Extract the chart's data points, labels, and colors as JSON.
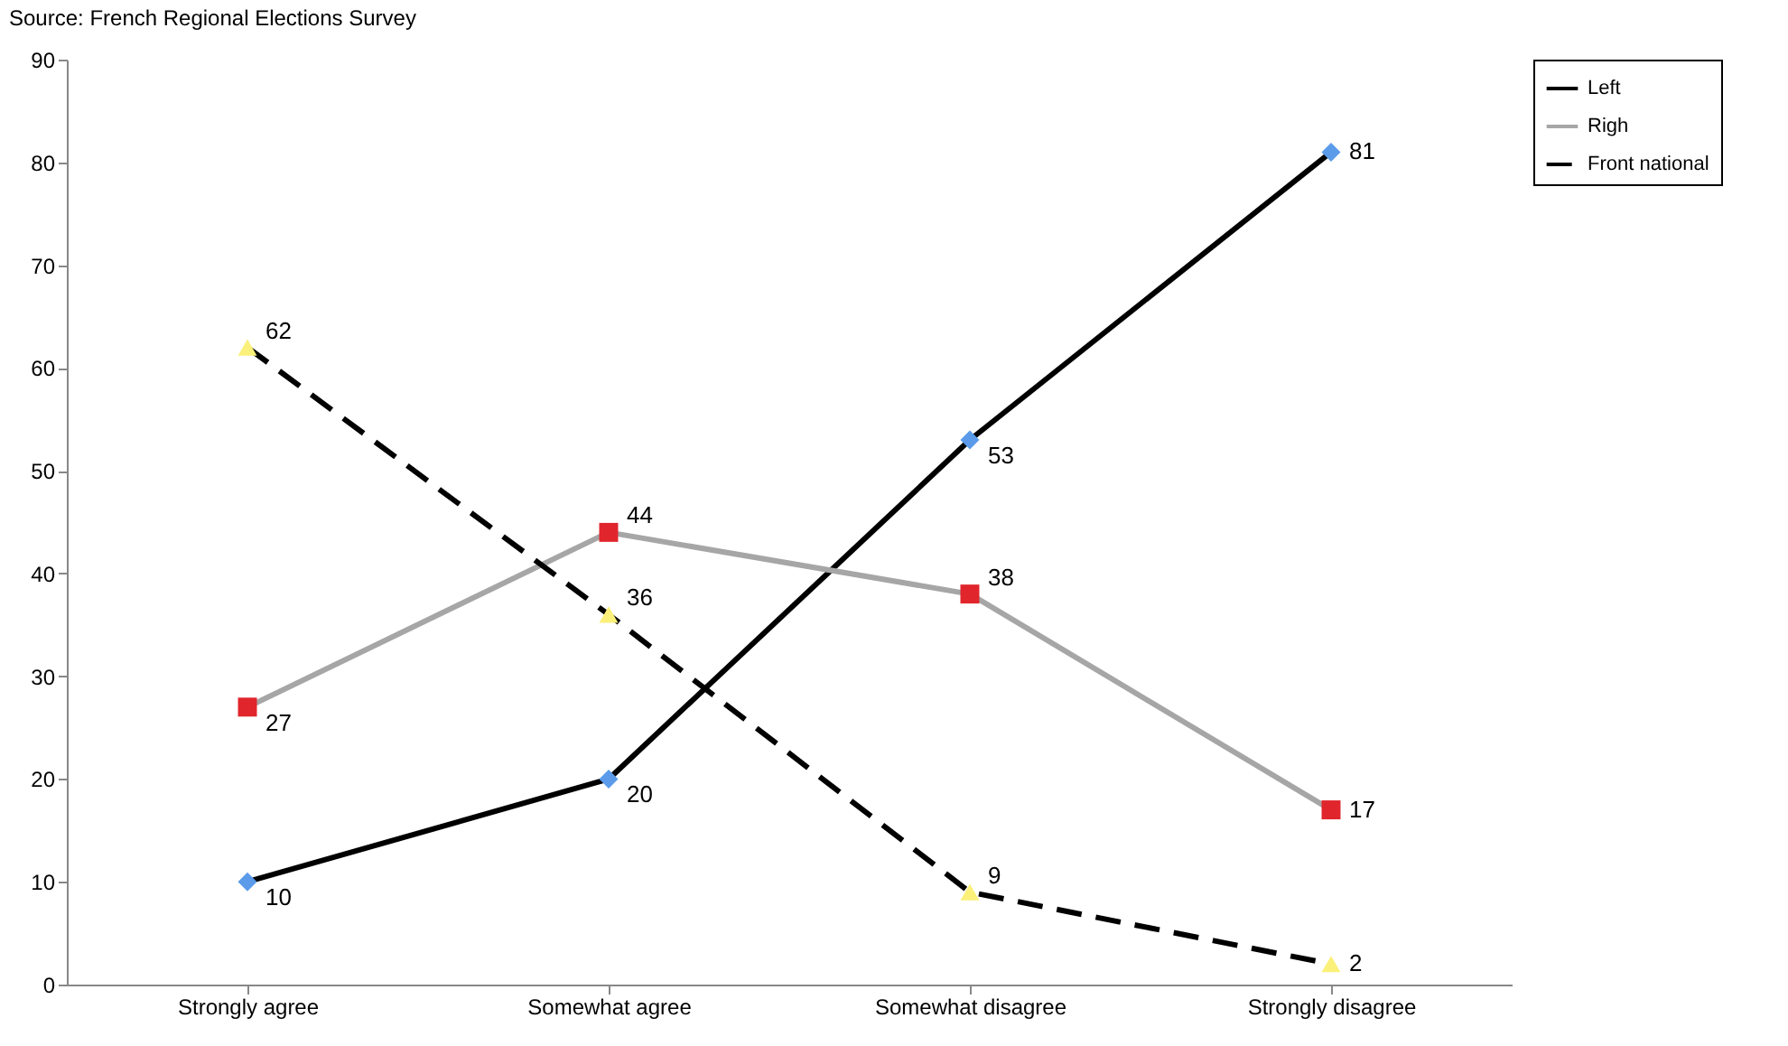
{
  "chart_data": {
    "type": "line",
    "annotations": [
      "Source: French Regional Elections Survey"
    ],
    "categories": [
      "Strongly agree",
      "Somewhat agree",
      "Somewhat disagree",
      "Strongly disagree"
    ],
    "series": [
      {
        "name": "Left",
        "color": "#000000",
        "colors": [
          "#5b9bea",
          "#5b9bea",
          "#5b9bea",
          "#5b9bea"
        ],
        "marker": "diamond",
        "line_style": "solid",
        "values": [
          10,
          20,
          53,
          81
        ]
      },
      {
        "name": "Righ",
        "color": "#a6a6a6",
        "colors": [
          "#e0262c",
          "#e0262c",
          "#e0262c",
          "#e0262c"
        ],
        "marker": "square",
        "line_style": "solid",
        "values": [
          27,
          44,
          38,
          17
        ]
      },
      {
        "name": "Front national",
        "color": "#000000",
        "colors": [
          "#fbf07a",
          "#fbf07a",
          "#fbf07a",
          "#fbf07a"
        ],
        "marker": "triangle",
        "line_style": "dashed",
        "values": [
          62,
          36,
          9,
          2
        ]
      }
    ],
    "ylim": [
      0,
      90
    ],
    "yticks": [
      0,
      10,
      20,
      30,
      40,
      50,
      60,
      70,
      80,
      90
    ],
    "data_labels": true,
    "legend": "right",
    "grid": false
  }
}
